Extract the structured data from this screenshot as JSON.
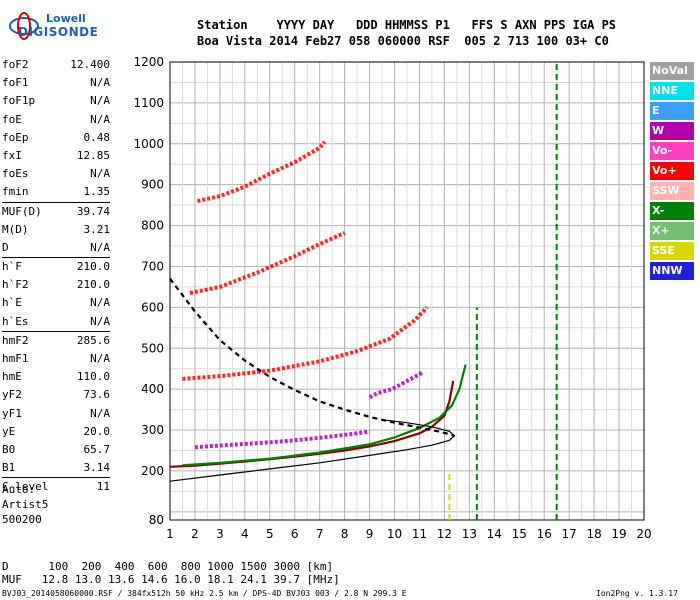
{
  "logo": {
    "line1": "Lowell",
    "line2": "DIGISONDE"
  },
  "header": {
    "labels": "Station    YYYY DAY   DDD HHMMSS P1   FFS S AXN PPS IGA PS",
    "values": "Boa Vista 2014 Feb27 058 060000 RSF  005 2 713 100 03+ C0"
  },
  "params": [
    {
      "k": "foF2",
      "v": "12.400"
    },
    {
      "k": "foF1",
      "v": "N/A"
    },
    {
      "k": "foF1p",
      "v": "N/A"
    },
    {
      "k": "foE",
      "v": "N/A"
    },
    {
      "k": "foEp",
      "v": "0.48"
    },
    {
      "k": "fxI",
      "v": "12.85"
    },
    {
      "k": "foEs",
      "v": "N/A"
    },
    {
      "k": "fmin",
      "v": "1.35"
    },
    {
      "k": "MUF(D)",
      "v": "39.74",
      "sep": true
    },
    {
      "k": "M(D)",
      "v": "3.21"
    },
    {
      "k": "D",
      "v": "N/A"
    },
    {
      "k": "h`F",
      "v": "210.0",
      "sep": true
    },
    {
      "k": "h`F2",
      "v": "210.0"
    },
    {
      "k": "h`E",
      "v": "N/A"
    },
    {
      "k": "h`Es",
      "v": "N/A"
    },
    {
      "k": "hmF2",
      "v": "285.6",
      "sep": true
    },
    {
      "k": "hmF1",
      "v": "N/A"
    },
    {
      "k": "hmE",
      "v": "110.0"
    },
    {
      "k": "yF2",
      "v": "73.6"
    },
    {
      "k": "yF1",
      "v": "N/A"
    },
    {
      "k": "yE",
      "v": "20.0"
    },
    {
      "k": "B0",
      "v": "65.7"
    },
    {
      "k": "B1",
      "v": "3.14"
    },
    {
      "k": "C-level",
      "v": "11",
      "sep": true
    }
  ],
  "auto": {
    "line1": "Auto:",
    "line2": "Artist5",
    "line3": "500200"
  },
  "legend": [
    {
      "label": "NoVal",
      "color": "#a0a0a0"
    },
    {
      "label": "NNE",
      "color": "#00e0f0"
    },
    {
      "label": "E",
      "color": "#3aa0ff"
    },
    {
      "label": "W",
      "color": "#b000b0"
    },
    {
      "label": "Vo-",
      "color": "#ff40c0"
    },
    {
      "label": "Vo+",
      "color": "#ff0000"
    },
    {
      "label": "SSW",
      "color": "#ffb0b0"
    },
    {
      "label": "X-",
      "color": "#008000"
    },
    {
      "label": "X+",
      "color": "#70c070"
    },
    {
      "label": "SSE",
      "color": "#d8d800"
    },
    {
      "label": "NNW",
      "color": "#2020e0"
    }
  ],
  "footer": {
    "d_line": "D      100  200  400  600  800 1000 1500 3000 [km]",
    "muf_line": "MUF   12.8 13.0 13.6 14.6 16.0 18.1 24.1 39.7 [MHz]",
    "file_line": "BVJ03_2014058060000.RSF / 384fx512h 50 kHz 2.5 km / DPS-4D BVJ03 003 / 2.8 N 299.3 E",
    "version": "Ion2Png v. 1.3.17"
  },
  "chart_data": {
    "type": "scatter",
    "xlim": [
      1,
      20
    ],
    "ylim": [
      80,
      1200
    ],
    "x_ticks": [
      1,
      2,
      3,
      4,
      5,
      6,
      7,
      8,
      9,
      10,
      11,
      12,
      13,
      14,
      15,
      16,
      17,
      18,
      19,
      20
    ],
    "y_ticks": [
      80,
      200,
      300,
      400,
      500,
      600,
      700,
      800,
      900,
      1000,
      1100,
      1200
    ],
    "grid": true,
    "traces": [
      {
        "name": "o-trace",
        "color": "#8b0000",
        "x": [
          1.0,
          2,
          3,
          4,
          5,
          6,
          7,
          8,
          9,
          10,
          11,
          11.5,
          12,
          12.2,
          12.35
        ],
        "y": [
          210,
          213,
          218,
          223,
          229,
          235,
          242,
          250,
          260,
          273,
          292,
          308,
          335,
          370,
          420
        ]
      },
      {
        "name": "x-trace",
        "color": "#008000",
        "x": [
          1.5,
          3,
          5,
          7,
          9,
          10,
          11,
          11.8,
          12.3,
          12.6,
          12.85
        ],
        "y": [
          214,
          220,
          230,
          245,
          265,
          282,
          305,
          330,
          360,
          400,
          460
        ]
      },
      {
        "name": "profile",
        "color": "#000000",
        "x": [
          1.0,
          3,
          5,
          7,
          9,
          10.5,
          11.5,
          12.2,
          12.4,
          12.2,
          11.5,
          10.5,
          9.5
        ],
        "y": [
          175,
          190,
          205,
          220,
          238,
          252,
          263,
          275,
          286,
          297,
          308,
          318,
          325
        ]
      },
      {
        "name": "muf-dashed",
        "color": "#000000",
        "dash": true,
        "x": [
          1,
          2,
          3,
          4,
          5,
          6,
          7,
          8,
          9,
          10,
          11,
          11.8,
          12.2,
          12.4
        ],
        "y": [
          670,
          590,
          520,
          470,
          430,
          398,
          370,
          350,
          332,
          318,
          306,
          296,
          290,
          286
        ]
      }
    ],
    "echo_bands": [
      {
        "color": "#ff0000",
        "x": [
          1.5,
          3,
          5,
          7,
          8.5,
          9.8,
          10.8,
          11.3
        ],
        "y": [
          425,
          432,
          445,
          468,
          493,
          523,
          568,
          600
        ]
      },
      {
        "color": "#ff0000",
        "x": [
          1.8,
          3,
          4.5,
          6,
          7,
          8
        ],
        "y": [
          635,
          650,
          685,
          725,
          755,
          782
        ]
      },
      {
        "color": "#ff0000",
        "x": [
          2.1,
          3,
          4,
          5,
          6,
          7,
          7.2
        ],
        "y": [
          860,
          872,
          895,
          927,
          955,
          990,
          1005
        ]
      },
      {
        "color": "#b000b0",
        "x": [
          2,
          3,
          4,
          5,
          6,
          7,
          8,
          9
        ],
        "y": [
          258,
          262,
          266,
          270,
          275,
          281,
          288,
          296
        ]
      },
      {
        "color": "#b000b0",
        "x": [
          9,
          9.3,
          9.6,
          9.9,
          10.2,
          10.5,
          10.8,
          11.1
        ],
        "y": [
          380,
          390,
          395,
          400,
          410,
          420,
          430,
          440
        ]
      }
    ],
    "vertical_lines": [
      {
        "color": "#008000",
        "x": 16.5,
        "y": [
          80,
          1200
        ]
      },
      {
        "color": "#008000",
        "x": 13.3,
        "y": [
          80,
          600
        ]
      },
      {
        "color": "#d8d800",
        "x": 12.2,
        "y": [
          80,
          200
        ]
      }
    ]
  }
}
